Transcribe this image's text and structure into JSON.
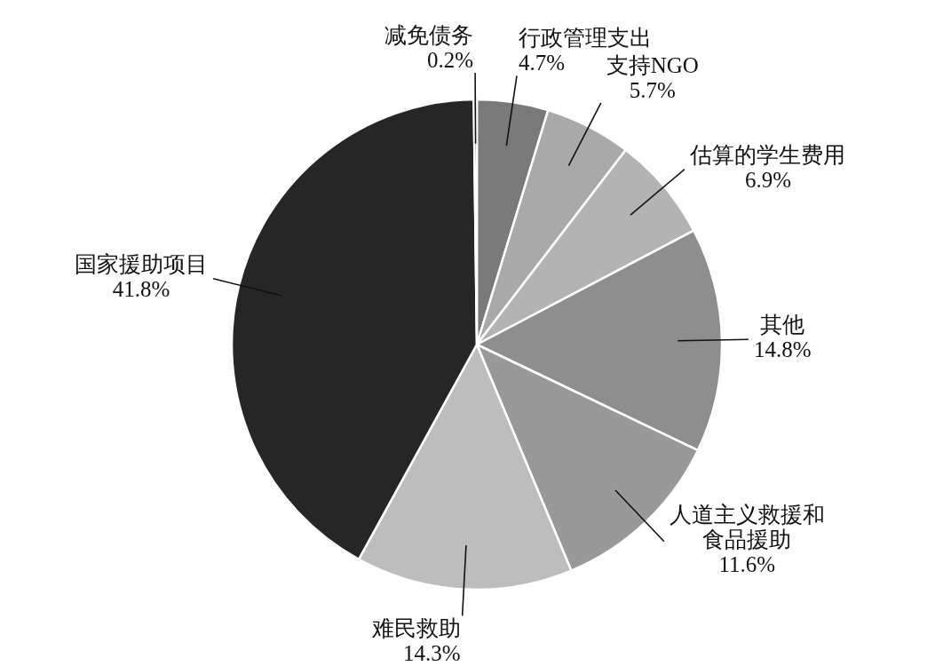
{
  "chart_data": {
    "type": "pie",
    "categories": [
      "行政管理支出",
      "支持NGO",
      "估算的学生费用",
      "其他",
      "人道主义救援和食品援助",
      "难民救助",
      "国家援助项目",
      "减免债务"
    ],
    "values": [
      4.7,
      5.7,
      6.9,
      14.8,
      11.6,
      14.3,
      41.8,
      0.2
    ],
    "value_labels": [
      "4.7%",
      "5.7%",
      "6.9%",
      "14.8%",
      "11.6%",
      "14.3%",
      "41.8%",
      "0.2%"
    ],
    "colors": [
      "#7a7a7a",
      "#a9a9a9",
      "#b3b3b3",
      "#8e8e8e",
      "#999999",
      "#bdbdbd",
      "#262626",
      "#555555"
    ]
  }
}
